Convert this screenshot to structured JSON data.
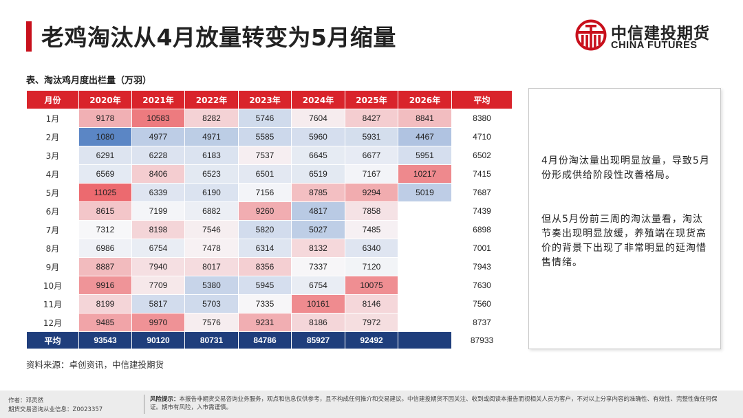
{
  "title": "老鸡淘汰从4月放量转变为5月缩量",
  "brand": {
    "name_cn": "中信建投期货",
    "name_en": "CHINA FUTURES",
    "color": "#c8101c"
  },
  "table": {
    "caption": "表、淘汰鸡月度出栏量（万羽）",
    "headers": [
      "月份",
      "2020年",
      "2021年",
      "2022年",
      "2023年",
      "2024年",
      "2025年",
      "2026年",
      "平均"
    ],
    "rows": [
      {
        "month": "1月",
        "values": [
          "9178",
          "10583",
          "8282",
          "5746",
          "7604",
          "8427",
          "8841"
        ],
        "avg": "8380"
      },
      {
        "month": "2月",
        "values": [
          "1080",
          "4977",
          "4971",
          "5585",
          "5960",
          "5931",
          "4467"
        ],
        "avg": "4710"
      },
      {
        "month": "3月",
        "values": [
          "6291",
          "6228",
          "6183",
          "7537",
          "6645",
          "6677",
          "5951"
        ],
        "avg": "6502"
      },
      {
        "month": "4月",
        "values": [
          "6569",
          "8406",
          "6523",
          "6501",
          "6519",
          "7167",
          "10217"
        ],
        "avg": "7415"
      },
      {
        "month": "5月",
        "values": [
          "11025",
          "6339",
          "6190",
          "7156",
          "8785",
          "9294",
          "5019"
        ],
        "avg": "7687"
      },
      {
        "month": "6月",
        "values": [
          "8615",
          "7199",
          "6882",
          "9260",
          "4817",
          "7858",
          ""
        ],
        "avg": "7439"
      },
      {
        "month": "7月",
        "values": [
          "7312",
          "8198",
          "7546",
          "5820",
          "5027",
          "7485",
          ""
        ],
        "avg": "6898"
      },
      {
        "month": "8月",
        "values": [
          "6986",
          "6754",
          "7478",
          "6314",
          "8132",
          "6340",
          ""
        ],
        "avg": "7001"
      },
      {
        "month": "9月",
        "values": [
          "8887",
          "7940",
          "8017",
          "8356",
          "7337",
          "7120",
          ""
        ],
        "avg": "7943"
      },
      {
        "month": "10月",
        "values": [
          "9916",
          "7709",
          "5380",
          "5945",
          "6754",
          "10075",
          ""
        ],
        "avg": "7630"
      },
      {
        "month": "11月",
        "values": [
          "8199",
          "5817",
          "5703",
          "7335",
          "10161",
          "8146",
          ""
        ],
        "avg": "7560"
      },
      {
        "month": "12月",
        "values": [
          "9485",
          "9970",
          "7576",
          "9231",
          "8186",
          "7972",
          ""
        ],
        "avg": "8737"
      }
    ],
    "total_row": {
      "label": "平均",
      "values": [
        "93543",
        "90120",
        "80731",
        "84786",
        "85927",
        "92492",
        ""
      ],
      "avg": "87933"
    },
    "heat_colors": {
      "low": "#5b86c5",
      "mid": "#f7f7f9",
      "high": "#ec6a6f"
    },
    "header_color": "#d9242b",
    "total_color": "#1f3e7c"
  },
  "note": {
    "p1": "4月份淘汰量出现明显放量，导致5月份形成供给阶段性改善格局。",
    "p2": "但从5月份前三周的淘汰量看，淘汰节奏出现明显放缓，养殖端在现货高价的背景下出现了非常明显的延淘惜售情绪。"
  },
  "source": "资料来源：卓创资讯，中信建投期货",
  "footer": {
    "author": "作者：邓灵然",
    "license": "期货交易咨询从业信息：Z0023357",
    "risk_label": "风险提示：",
    "risk_text": "本报告非期货交易咨询业务服务，观点和信息仅供参考，且不构成任何推介和交易建议。中信建投期货不因关注、收到或阅读本报告而视相关人员为客户，不对以上分享内容的准确性、有效性、完整性做任何保证。期市有风险，入市需谨慎。"
  }
}
